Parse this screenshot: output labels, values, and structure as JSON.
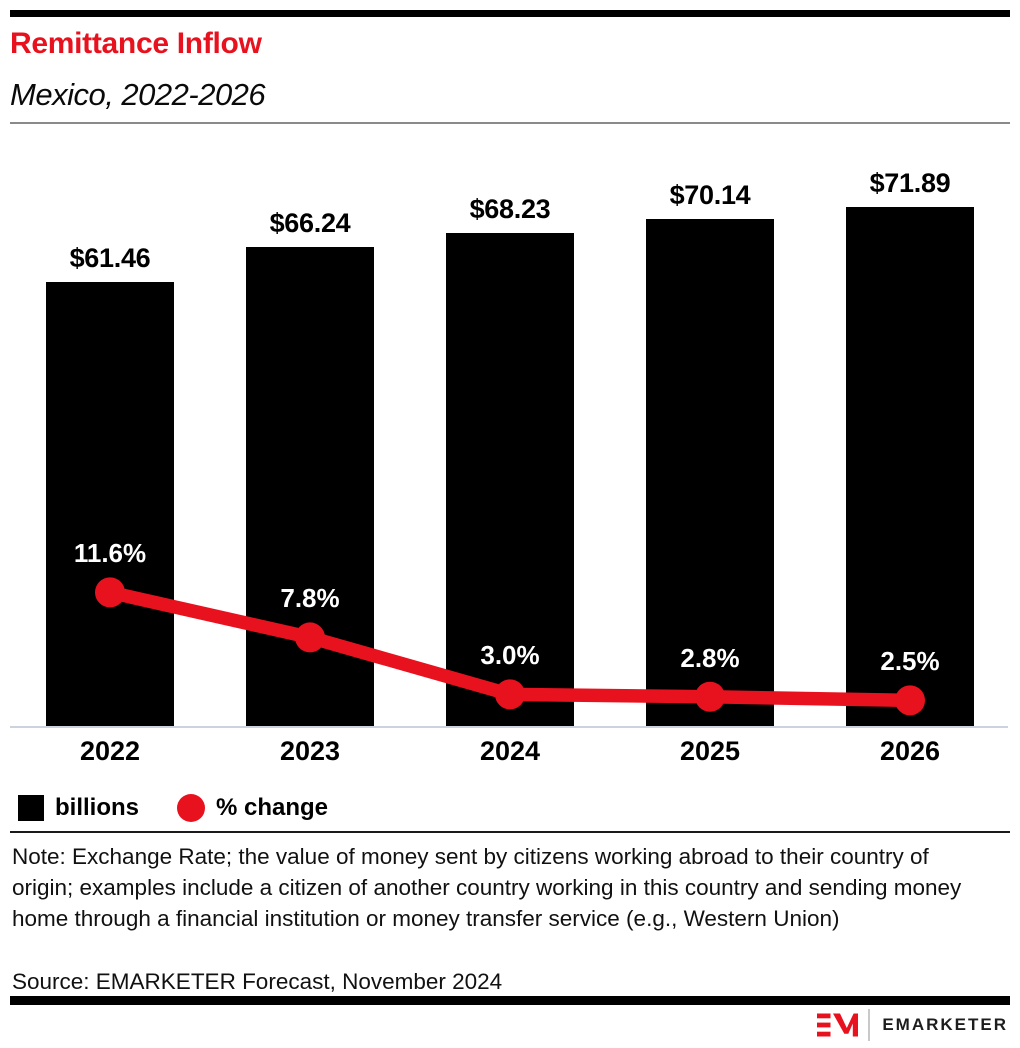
{
  "header": {
    "title": "Remittance Inflow",
    "subtitle": "Mexico, 2022-2026"
  },
  "chart_data": {
    "type": "bar",
    "categories": [
      "2022",
      "2023",
      "2024",
      "2025",
      "2026"
    ],
    "series": [
      {
        "name": "billions",
        "type": "bar",
        "color": "#000000",
        "values": [
          61.46,
          66.24,
          68.23,
          70.14,
          71.89
        ],
        "labels": [
          "$61.46",
          "$66.24",
          "$68.23",
          "$70.14",
          "$71.89"
        ]
      },
      {
        "name": "% change",
        "type": "line",
        "color": "#e8121f",
        "values": [
          11.6,
          7.8,
          3.0,
          2.8,
          2.5
        ],
        "labels": [
          "11.6%",
          "7.8%",
          "3.0%",
          "2.8%",
          "2.5%"
        ]
      }
    ],
    "title": "Remittance Inflow",
    "subtitle": "Mexico, 2022-2026",
    "xlabel": "",
    "ylabel": "",
    "grid": false,
    "legend_position": "bottom"
  },
  "legend": {
    "items": [
      {
        "label": "billions",
        "swatch": "square",
        "color": "#000000"
      },
      {
        "label": "% change",
        "swatch": "circle",
        "color": "#e8121f"
      }
    ]
  },
  "note": "Note: Exchange Rate; the value of money sent by citizens working abroad to their country of origin; examples include a citizen of another country working in this country and sending money home through a financial institution or money transfer service (e.g., Western Union)",
  "source": "Source: EMARKETER Forecast, November 2024",
  "footer": {
    "brand": "EMARKETER",
    "logo_icon": "emarketer-logo"
  },
  "colors": {
    "accent_red": "#e8121f",
    "bar_black": "#000000",
    "axis_gray": "#ccd3de"
  }
}
